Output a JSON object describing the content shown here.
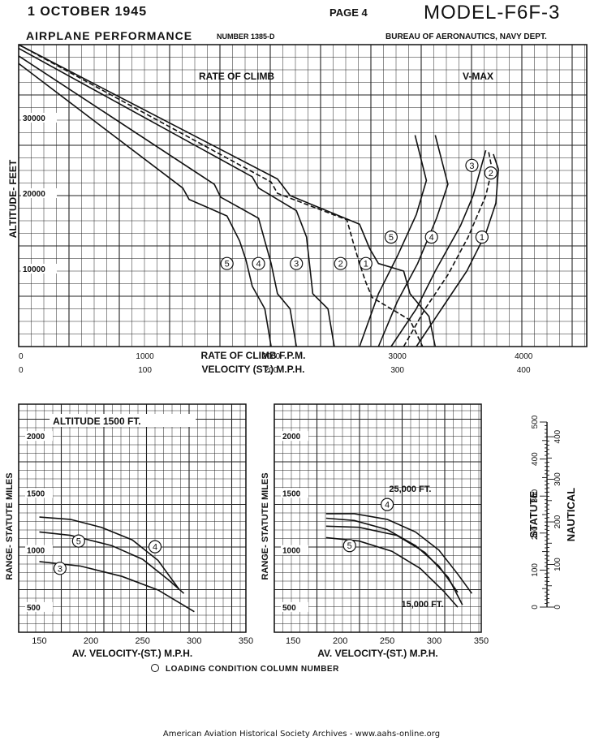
{
  "header": {
    "date": "1 OCTOBER 1945",
    "page": "PAGE 4",
    "model": "MODEL-F6F-3",
    "performance": "AIRPLANE PERFORMANCE",
    "number": "NUMBER 1385-D",
    "bureau": "BUREAU OF AERONAUTICS, NAVY DEPT."
  },
  "footer": {
    "legend_note": "LOADING CONDITION COLUMN NUMBER",
    "credit": "American Aviation Historical Society Archives - www.aahs-online.org"
  },
  "colors": {
    "ink": "#111111",
    "grid": "#222222",
    "paper": "#ffffff"
  },
  "chart_data": [
    {
      "type": "line",
      "title": "",
      "sections": [
        "RATE OF CLIMB",
        "V-MAX"
      ],
      "ylabel": "ALTITUDE- FEET",
      "ylim": [
        0,
        40000
      ],
      "yticks": [
        {
          "v": 10000,
          "label": "10000"
        },
        {
          "v": 20000,
          "label": "20000"
        },
        {
          "v": 30000,
          "label": "30000"
        }
      ],
      "axis_roc": {
        "label": "RATE OF CLIMB F.P.M.",
        "xlim": [
          0,
          4500
        ],
        "ticks": [
          {
            "v": 0,
            "label": "0"
          },
          {
            "v": 1000,
            "label": "1000"
          },
          {
            "v": 2000,
            "label": "2000"
          },
          {
            "v": 3000,
            "label": "3000"
          },
          {
            "v": 4000,
            "label": "4000"
          }
        ]
      },
      "axis_vel": {
        "label": "VELOCITY (ST.) M.P.H.",
        "xlim": [
          0,
          450
        ],
        "ticks": [
          {
            "v": 0,
            "label": "0"
          },
          {
            "v": 100,
            "label": "100"
          },
          {
            "v": 200,
            "label": "200"
          },
          {
            "v": 300,
            "label": "300"
          },
          {
            "v": 400,
            "label": "400"
          }
        ]
      },
      "roc_series": [
        {
          "name": "5",
          "dashed": false,
          "label_at": [
            1650,
            11000
          ],
          "points": [
            [
              0,
              37500
            ],
            [
              1300,
              21000
            ],
            [
              1350,
              19500
            ],
            [
              1650,
              17300
            ],
            [
              1750,
              14000
            ],
            [
              1800,
              11500
            ],
            [
              1850,
              8000
            ],
            [
              1950,
              5000
            ],
            [
              2000,
              0
            ]
          ]
        },
        {
          "name": "4",
          "dashed": false,
          "label_at": [
            1900,
            11000
          ],
          "points": [
            [
              0,
              38500
            ],
            [
              1550,
              21500
            ],
            [
              1600,
              19800
            ],
            [
              1900,
              17000
            ],
            [
              1950,
              14000
            ],
            [
              2000,
              11000
            ],
            [
              2050,
              7000
            ],
            [
              2150,
              5000
            ],
            [
              2200,
              0
            ]
          ]
        },
        {
          "name": "3",
          "dashed": false,
          "label_at": [
            2200,
            11000
          ],
          "points": [
            [
              0,
              39500
            ],
            [
              1850,
              22500
            ],
            [
              1900,
              21000
            ],
            [
              2200,
              18000
            ],
            [
              2280,
              14500
            ],
            [
              2300,
              11500
            ],
            [
              2330,
              7000
            ],
            [
              2450,
              5000
            ],
            [
              2500,
              0
            ]
          ]
        },
        {
          "name": "2",
          "dashed": true,
          "label_at": [
            2550,
            11000
          ],
          "points": [
            [
              0,
              40000
            ],
            [
              2000,
              21800
            ],
            [
              2050,
              20300
            ],
            [
              2600,
              16800
            ],
            [
              2650,
              13800
            ],
            [
              2700,
              11000
            ],
            [
              2750,
              8500
            ],
            [
              2800,
              6500
            ],
            [
              3100,
              3500
            ],
            [
              3200,
              0
            ]
          ]
        },
        {
          "name": "1",
          "dashed": false,
          "label_at": [
            2750,
            11000
          ],
          "points": [
            [
              0,
              40000
            ],
            [
              2050,
              22200
            ],
            [
              2150,
              20000
            ],
            [
              2700,
              16200
            ],
            [
              2780,
              13000
            ],
            [
              2850,
              11000
            ],
            [
              3050,
              10000
            ],
            [
              3100,
              7000
            ],
            [
              3250,
              4000
            ],
            [
              3300,
              0
            ]
          ]
        }
      ],
      "vmax_series": [
        {
          "name": "5",
          "dashed": false,
          "label_at": [
            295,
            14500
          ],
          "points": [
            [
              270,
              0
            ],
            [
              285,
              7000
            ],
            [
              300,
              12000
            ],
            [
              315,
              17500
            ],
            [
              323,
              22000
            ],
            [
              314,
              28000
            ]
          ]
        },
        {
          "name": "4",
          "dashed": false,
          "label_at": [
            327,
            14500
          ],
          "points": [
            [
              285,
              0
            ],
            [
              300,
              6000
            ],
            [
              316,
              11000
            ],
            [
              331,
              17000
            ],
            [
              340,
              21500
            ],
            [
              330,
              28000
            ]
          ]
        },
        {
          "name": "3",
          "dashed": false,
          "label_at": [
            359,
            24000
          ],
          "points": [
            [
              295,
              0
            ],
            [
              315,
              5000
            ],
            [
              330,
              10000
            ],
            [
              350,
              16000
            ],
            [
              360,
              20000
            ],
            [
              365,
              23000
            ],
            [
              370,
              26000
            ]
          ]
        },
        {
          "name": "2",
          "dashed": true,
          "label_at": [
            374,
            23000
          ],
          "points": [
            [
              305,
              0
            ],
            [
              322,
              5000
            ],
            [
              340,
              9500
            ],
            [
              356,
              14500
            ],
            [
              370,
              20000
            ],
            [
              375,
              23500
            ],
            [
              372,
              26000
            ]
          ]
        },
        {
          "name": "1",
          "dashed": false,
          "label_at": [
            367,
            14500
          ],
          "points": [
            [
              315,
              0
            ],
            [
              335,
              5000
            ],
            [
              355,
              10000
            ],
            [
              370,
              15000
            ],
            [
              378,
              19000
            ],
            [
              380,
              23500
            ],
            [
              376,
              25500
            ]
          ]
        }
      ]
    },
    {
      "type": "line",
      "title": "ALTITUDE 1500 FT.",
      "xlabel": "AV. VELOCITY-(ST.) M.P.H.",
      "ylabel": "RANGE- STATUTE MILES",
      "xlim": [
        130,
        350
      ],
      "ylim": [
        300,
        2300
      ],
      "xticks": [
        150,
        200,
        250,
        300,
        350
      ],
      "yticks": [
        500,
        1000,
        1500,
        2000
      ],
      "series": [
        {
          "name": "4",
          "label_at": [
            262,
            1050
          ],
          "points": [
            [
              150,
              1310
            ],
            [
              180,
              1290
            ],
            [
              210,
              1220
            ],
            [
              240,
              1110
            ],
            [
              265,
              930
            ],
            [
              285,
              680
            ]
          ]
        },
        {
          "name": "5",
          "label_at": [
            188,
            1100
          ],
          "points": [
            [
              150,
              1180
            ],
            [
              180,
              1150
            ],
            [
              220,
              1060
            ],
            [
              250,
              940
            ],
            [
              275,
              760
            ],
            [
              290,
              640
            ]
          ]
        },
        {
          "name": "3",
          "label_at": [
            170,
            860
          ],
          "points": [
            [
              150,
              920
            ],
            [
              190,
              880
            ],
            [
              230,
              790
            ],
            [
              265,
              670
            ],
            [
              300,
              480
            ]
          ]
        }
      ]
    },
    {
      "type": "line",
      "title": "",
      "xlabel": "AV. VELOCITY-(ST.) M.P.H.",
      "ylabel": "RANGE- STATUTE MILES",
      "xlim": [
        130,
        350
      ],
      "ylim": [
        300,
        2300
      ],
      "xticks": [
        150,
        200,
        250,
        300,
        350
      ],
      "yticks": [
        500,
        1000,
        1500,
        2000
      ],
      "annotations": [
        {
          "text": "25,000 FT.",
          "at": [
            252,
            1530
          ]
        },
        {
          "text": "15,000 FT.",
          "at": [
            265,
            520
          ]
        }
      ],
      "series": [
        {
          "name": "4",
          "label_at": [
            250,
            1420
          ],
          "points": [
            [
              185,
              1340
            ],
            [
              215,
              1340
            ],
            [
              250,
              1290
            ],
            [
              280,
              1180
            ],
            [
              305,
              1020
            ],
            [
              325,
              810
            ],
            [
              340,
              640
            ]
          ]
        },
        {
          "name": "4",
          "label_at": [
            0,
            0
          ],
          "points": [
            [
              185,
              1300
            ],
            [
              215,
              1280
            ],
            [
              250,
              1200
            ],
            [
              280,
              1060
            ],
            [
              305,
              880
            ],
            [
              325,
              650
            ]
          ]
        },
        {
          "name": "5",
          "label_at": [
            210,
            1060
          ],
          "points": [
            [
              185,
              1130
            ],
            [
              220,
              1100
            ],
            [
              255,
              1010
            ],
            [
              285,
              860
            ],
            [
              310,
              660
            ],
            [
              325,
              520
            ]
          ]
        },
        {
          "name": "5",
          "label_at": [
            0,
            0
          ],
          "points": [
            [
              185,
              1230
            ],
            [
              220,
              1220
            ],
            [
              260,
              1150
            ],
            [
              290,
              1000
            ],
            [
              315,
              780
            ],
            [
              330,
              540
            ]
          ]
        }
      ]
    },
    {
      "type": "scale",
      "left_label": "STATUTE",
      "right_label": "NAUTICAL",
      "statute_ticks": [
        "0",
        "100",
        "200",
        "300",
        "400",
        "500"
      ],
      "nautical_ticks": [
        "0",
        "100",
        "200",
        "300",
        "400"
      ]
    }
  ]
}
